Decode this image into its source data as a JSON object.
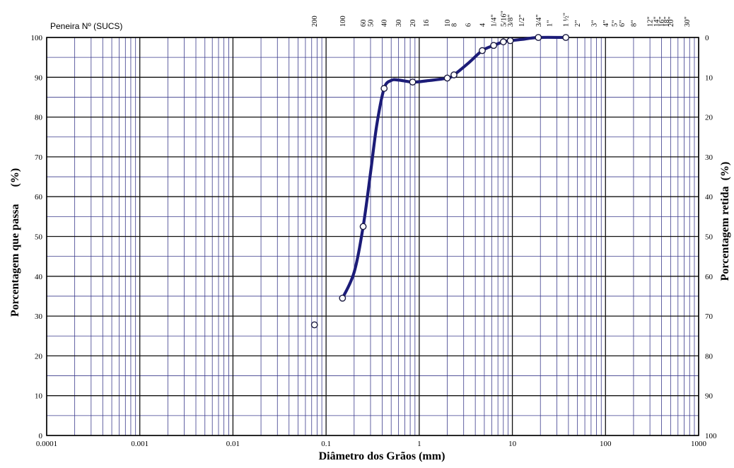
{
  "chart_data": {
    "type": "line",
    "x_scale": "log",
    "xlim": [
      0.0001,
      1000
    ],
    "ylim": [
      0,
      100
    ],
    "xlabel": "Diâmetro dos Grãos (mm)",
    "ylabel": "Porcentagem que passa      (%)",
    "ylabel_right": "Porcentagem retida  (%)",
    "sieve_caption": "Peneira Nº  (SUCS)",
    "x_ticks": [
      {
        "v": 0.0001,
        "label": "0.0001"
      },
      {
        "v": 0.001,
        "label": "0.001"
      },
      {
        "v": 0.01,
        "label": "0.01"
      },
      {
        "v": 0.1,
        "label": "0.1"
      },
      {
        "v": 1,
        "label": "1"
      },
      {
        "v": 10,
        "label": "10"
      },
      {
        "v": 100,
        "label": "100"
      },
      {
        "v": 1000,
        "label": "1000"
      }
    ],
    "y_ticks": [
      0,
      10,
      20,
      30,
      40,
      50,
      60,
      70,
      80,
      90,
      100
    ],
    "y_ticks_right": [
      "100",
      "90",
      "80",
      "70",
      "60",
      "50",
      "40",
      "30",
      "20",
      "10",
      "0"
    ],
    "sieves": [
      {
        "label": "200",
        "mm": 0.075
      },
      {
        "label": "100",
        "mm": 0.15
      },
      {
        "label": "60",
        "mm": 0.25
      },
      {
        "label": "50",
        "mm": 0.3
      },
      {
        "label": "40",
        "mm": 0.42
      },
      {
        "label": "30",
        "mm": 0.6
      },
      {
        "label": "20",
        "mm": 0.85
      },
      {
        "label": "16",
        "mm": 1.18
      },
      {
        "label": "10",
        "mm": 2.0
      },
      {
        "label": "8",
        "mm": 2.36
      },
      {
        "label": "6",
        "mm": 3.35
      },
      {
        "label": "4",
        "mm": 4.75
      },
      {
        "label": "1/4\"",
        "mm": 6.3
      },
      {
        "label": "5/16\"",
        "mm": 8.0
      },
      {
        "label": "3/8\"",
        "mm": 9.5
      },
      {
        "label": "1/2\"",
        "mm": 12.5
      },
      {
        "label": "3/4\"",
        "mm": 19.0
      },
      {
        "label": "1\"",
        "mm": 25.0
      },
      {
        "label": "1 ½\"",
        "mm": 37.5
      },
      {
        "label": "2\"",
        "mm": 50.0
      },
      {
        "label": "3\"",
        "mm": 75.0
      },
      {
        "label": "4\"",
        "mm": 100.0
      },
      {
        "label": "5\"",
        "mm": 125.0
      },
      {
        "label": "6\"",
        "mm": 150.0
      },
      {
        "label": "8\"",
        "mm": 200.0
      },
      {
        "label": "12\"",
        "mm": 300.0
      },
      {
        "label": "14\"",
        "mm": 350.0
      },
      {
        "label": "16\"",
        "mm": 400.0
      },
      {
        "label": "18\"",
        "mm": 450.0
      },
      {
        "label": "20\"",
        "mm": 500.0
      },
      {
        "label": "30\"",
        "mm": 750.0
      }
    ],
    "series": [
      {
        "name": "",
        "color": "#1c1c78",
        "curve": [
          {
            "x": 0.15,
            "y": 34.5
          },
          {
            "x": 0.2,
            "y": 41
          },
          {
            "x": 0.25,
            "y": 52.5
          },
          {
            "x": 0.3,
            "y": 66
          },
          {
            "x": 0.35,
            "y": 78
          },
          {
            "x": 0.42,
            "y": 87.2
          },
          {
            "x": 0.5,
            "y": 89.2
          },
          {
            "x": 0.6,
            "y": 89.3
          },
          {
            "x": 0.85,
            "y": 88.8
          },
          {
            "x": 1.2,
            "y": 89.1
          },
          {
            "x": 2.0,
            "y": 89.8
          },
          {
            "x": 2.36,
            "y": 90.6
          },
          {
            "x": 3.35,
            "y": 93.5
          },
          {
            "x": 4.75,
            "y": 96.7
          },
          {
            "x": 6.3,
            "y": 98
          },
          {
            "x": 8.0,
            "y": 98.9
          },
          {
            "x": 9.5,
            "y": 99.2
          },
          {
            "x": 12.5,
            "y": 99.5
          },
          {
            "x": 19.0,
            "y": 100
          },
          {
            "x": 37.5,
            "y": 100
          }
        ],
        "points": [
          {
            "x": 0.075,
            "y": 27.8
          },
          {
            "x": 0.15,
            "y": 34.5
          },
          {
            "x": 0.25,
            "y": 52.5
          },
          {
            "x": 0.42,
            "y": 87.2
          },
          {
            "x": 0.85,
            "y": 88.8
          },
          {
            "x": 2.0,
            "y": 89.8
          },
          {
            "x": 2.36,
            "y": 90.6
          },
          {
            "x": 4.75,
            "y": 96.7
          },
          {
            "x": 6.3,
            "y": 98
          },
          {
            "x": 8.0,
            "y": 98.9
          },
          {
            "x": 9.5,
            "y": 99.2
          },
          {
            "x": 19.0,
            "y": 100
          },
          {
            "x": 37.5,
            "y": 100
          }
        ]
      }
    ]
  }
}
